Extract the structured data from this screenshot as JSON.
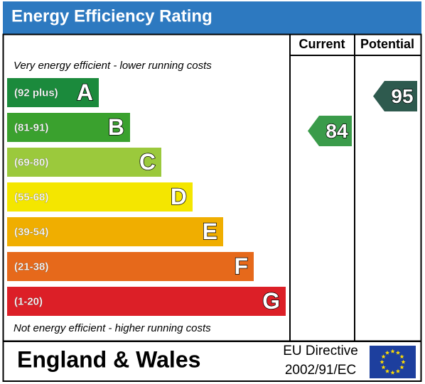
{
  "title": "Energy Efficiency Rating",
  "columns": [
    "Current",
    "Potential"
  ],
  "top_note": "Very energy efficient - lower running costs",
  "bottom_note": "Not energy efficient - higher running costs",
  "bands": [
    {
      "range": "(92 plus)",
      "letter": "A",
      "color": "#1b8a3c"
    },
    {
      "range": "(81-91)",
      "letter": "B",
      "color": "#3aa12e"
    },
    {
      "range": "(69-80)",
      "letter": "C",
      "color": "#9bc93c"
    },
    {
      "range": "(55-68)",
      "letter": "D",
      "color": "#f4e600"
    },
    {
      "range": "(39-54)",
      "letter": "E",
      "color": "#f0ae00"
    },
    {
      "range": "(21-38)",
      "letter": "F",
      "color": "#e6691b"
    },
    {
      "range": "(1-20)",
      "letter": "G",
      "color": "#dc1f27"
    }
  ],
  "ratings": [
    {
      "value": 84,
      "color": "#3a9b4a"
    },
    {
      "value": 95,
      "color": "#2e5a4e"
    }
  ],
  "footer": {
    "region": "England & Wales",
    "directive": [
      "EU Directive",
      "2002/91/EC"
    ]
  }
}
